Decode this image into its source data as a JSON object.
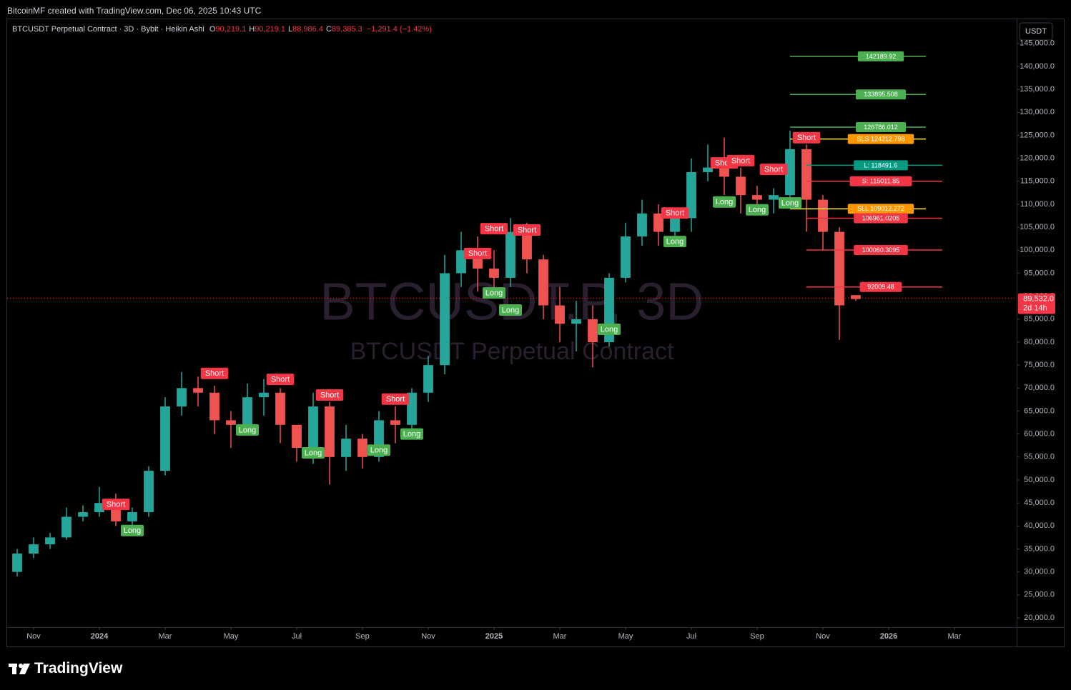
{
  "header": {
    "credit": "BitcoinMF created with TradingView.com, Dec 06, 2025 10:43 UTC"
  },
  "footer": {
    "brand": "TradingView"
  },
  "chart_data": {
    "type": "candlestick",
    "title": "BTCUSDT Perpetual Contract · 3D · Bybit · Heikin Ashi",
    "ohlc": [
      {
        "key": "O",
        "value": "90,219.1"
      },
      {
        "key": "H",
        "value": "90,219.1"
      },
      {
        "key": "L",
        "value": "88,986.4"
      },
      {
        "key": "C",
        "value": "89,385.3"
      }
    ],
    "change": "−1,291.4 (−1.42%)",
    "currency": "USDT",
    "watermark": [
      "BTCUSDT.P, 3D",
      "BTCUSDT Perpetual Contract"
    ],
    "up_color": "#26a69a",
    "down_color": "#ef5350",
    "xlim": [
      "2023-10",
      "2026-04"
    ],
    "xticks": [
      {
        "value": "2023-11",
        "label": "Nov"
      },
      {
        "value": "2024-01",
        "label": "2024"
      },
      {
        "value": "2024-03",
        "label": "Mar"
      },
      {
        "value": "2024-05",
        "label": "May"
      },
      {
        "value": "2024-07",
        "label": "Jul"
      },
      {
        "value": "2024-09",
        "label": "Sep"
      },
      {
        "value": "2024-11",
        "label": "Nov"
      },
      {
        "value": "2025-01",
        "label": "2025"
      },
      {
        "value": "2025-03",
        "label": "Mar"
      },
      {
        "value": "2025-05",
        "label": "May"
      },
      {
        "value": "2025-07",
        "label": "Jul"
      },
      {
        "value": "2025-09",
        "label": "Sep"
      },
      {
        "value": "2025-11",
        "label": "Nov"
      },
      {
        "value": "2026-01",
        "label": "2026"
      },
      {
        "value": "2026-03",
        "label": "Mar"
      }
    ],
    "ylim": [
      17980,
      150260
    ],
    "yticks": [
      {
        "value": 20000,
        "label": "20,000.0"
      },
      {
        "value": 25000,
        "label": "25,000.0"
      },
      {
        "value": 30000,
        "label": "30,000.0"
      },
      {
        "value": 35000,
        "label": "35,000.0"
      },
      {
        "value": 40000,
        "label": "40,000.0"
      },
      {
        "value": 45000,
        "label": "45,000.0"
      },
      {
        "value": 50000,
        "label": "50,000.0"
      },
      {
        "value": 55000,
        "label": "55,000.0"
      },
      {
        "value": 60000,
        "label": "60,000.0"
      },
      {
        "value": 65000,
        "label": "65,000.0"
      },
      {
        "value": 70000,
        "label": "70,000.0"
      },
      {
        "value": 75000,
        "label": "75,000.0"
      },
      {
        "value": 80000,
        "label": "80,000.0"
      },
      {
        "value": 85000,
        "label": "85,000.0"
      },
      {
        "value": 90000,
        "label": "90,000.0"
      },
      {
        "value": 95000,
        "label": "95,000.0"
      },
      {
        "value": 100000,
        "label": "100,000.0"
      },
      {
        "value": 105000,
        "label": "105,000.0"
      },
      {
        "value": 110000,
        "label": "110,000.0"
      },
      {
        "value": 115000,
        "label": "115,000.0"
      },
      {
        "value": 120000,
        "label": "120,000.0"
      },
      {
        "value": 125000,
        "label": "125,000.0"
      },
      {
        "value": 130000,
        "label": "130,000.0"
      },
      {
        "value": 135000,
        "label": "135,000.0"
      },
      {
        "value": 140000,
        "label": "140,000.0"
      },
      {
        "value": 145000,
        "label": "145,000.0"
      }
    ],
    "open": [
      30000,
      34000,
      36000,
      37500,
      42000,
      43000,
      45000,
      41000,
      43000,
      52000,
      66000,
      70000,
      69000,
      63000,
      62000,
      68000,
      69000,
      62000,
      57000,
      66000,
      55000,
      59000,
      55000,
      63000,
      62000,
      69000,
      75000,
      95000,
      100000,
      96000,
      94000,
      104000,
      98000,
      88000,
      84000,
      85000,
      80000,
      94000,
      103000,
      108000,
      104000,
      107000,
      117000,
      118000,
      116000,
      112000,
      111000,
      112000,
      122000,
      111000,
      104000,
      90219.1
    ],
    "high": [
      35000,
      37500,
      38500,
      44000,
      44500,
      48500,
      47000,
      44000,
      53000,
      68000,
      73500,
      72500,
      70500,
      65000,
      71000,
      72000,
      70000,
      61000,
      69000,
      67000,
      62000,
      60000,
      65000,
      66000,
      70000,
      77000,
      99000,
      104000,
      103000,
      100000,
      107000,
      106000,
      99000,
      92000,
      89000,
      88000,
      95000,
      106000,
      111000,
      110000,
      109000,
      120000,
      123000,
      124500,
      118000,
      114000,
      113500,
      126000,
      123000,
      112000,
      105000,
      90219.1
    ],
    "low": [
      29000,
      33000,
      35000,
      37000,
      41000,
      42000,
      40000,
      39000,
      42000,
      51000,
      64000,
      66000,
      60000,
      57000,
      61000,
      64000,
      58000,
      54000,
      53500,
      49000,
      52000,
      52500,
      54000,
      58000,
      60000,
      67000,
      73000,
      92000,
      91000,
      90000,
      92000,
      95000,
      85000,
      80000,
      78000,
      74500,
      79000,
      93000,
      101000,
      101000,
      102000,
      104000,
      115000,
      112000,
      108000,
      108000,
      108000,
      110000,
      104000,
      100000,
      80500,
      88986.4
    ],
    "close": [
      34000,
      36000,
      37500,
      42000,
      43000,
      45000,
      41000,
      43000,
      52000,
      66000,
      70000,
      69000,
      63000,
      62000,
      68000,
      69000,
      62000,
      57000,
      66000,
      55000,
      59000,
      55000,
      63000,
      62000,
      69000,
      75000,
      95000,
      100000,
      96000,
      94000,
      104000,
      98000,
      88000,
      84000,
      85000,
      80000,
      94000,
      103000,
      108000,
      104000,
      107000,
      117000,
      118000,
      116000,
      112000,
      111000,
      112000,
      122000,
      111000,
      104000,
      88000,
      89385.3
    ],
    "signal_colors": {
      "Short": "#f23645",
      "Long": "#4caf50"
    },
    "signals": [
      {
        "label": "Short",
        "candle": 6,
        "price": 44700
      },
      {
        "label": "Long",
        "candle": 7,
        "price": 39000
      },
      {
        "label": "Short",
        "candle": 12,
        "price": 73200
      },
      {
        "label": "Long",
        "candle": 14,
        "price": 60900
      },
      {
        "label": "Short",
        "candle": 16,
        "price": 71900
      },
      {
        "label": "Long",
        "candle": 18,
        "price": 55900
      },
      {
        "label": "Short",
        "candle": 19,
        "price": 68500
      },
      {
        "label": "Long",
        "candle": 22,
        "price": 56500
      },
      {
        "label": "Short",
        "candle": 23,
        "price": 67600
      },
      {
        "label": "Long",
        "candle": 24,
        "price": 60000
      },
      {
        "label": "Short",
        "candle": 28,
        "price": 99300
      },
      {
        "label": "Short",
        "candle": 29,
        "price": 104700
      },
      {
        "label": "Long",
        "candle": 29,
        "price": 90700
      },
      {
        "label": "Long",
        "candle": 30,
        "price": 87000
      },
      {
        "label": "Short",
        "candle": 31,
        "price": 104400
      },
      {
        "label": "Long",
        "candle": 36,
        "price": 82800
      },
      {
        "label": "Short",
        "candle": 40,
        "price": 108100
      },
      {
        "label": "Long",
        "candle": 40,
        "price": 101900
      },
      {
        "label": "Short",
        "candle": 43,
        "price": 119000
      },
      {
        "label": "Long",
        "candle": 43,
        "price": 110500
      },
      {
        "label": "Short",
        "candle": 44,
        "price": 119500
      },
      {
        "label": "Long",
        "candle": 45,
        "price": 108800
      },
      {
        "label": "Short",
        "candle": 46,
        "price": 117600
      },
      {
        "label": "Long",
        "candle": 47,
        "price": 110300
      },
      {
        "label": "Short",
        "candle": 48,
        "price": 124500
      }
    ],
    "levels": [
      {
        "value": 142189.92,
        "label": "142189.92",
        "color": "#4caf50",
        "line_color": "#4caf50",
        "from": 47
      },
      {
        "value": 133895.508,
        "label": "133895.508",
        "color": "#4caf50",
        "line_color": "#4caf50",
        "from": 47
      },
      {
        "value": 126786.012,
        "label": "126786.012",
        "color": "#4caf50",
        "line_color": "#4caf50",
        "from": 47
      },
      {
        "value": 124212.798,
        "label": "SLS 124212.798",
        "color": "#ff9800",
        "line_color": "#ffeb3b",
        "from": 47
      },
      {
        "value": 118491.6,
        "label": "L: 118491.6",
        "color": "#089981",
        "line_color": "#089981",
        "from": 48
      },
      {
        "value": 115011.85,
        "label": "S:  115011.85",
        "color": "#f23645",
        "line_color": "#f23645",
        "from": 48
      },
      {
        "value": 109012.272,
        "label": "SLL 109012.272",
        "color": "#ff9800",
        "line_color": "#ffeb3b",
        "from": 47
      },
      {
        "value": 106961.0205,
        "label": "106961.0205",
        "color": "#f23645",
        "line_color": "#f23645",
        "from": 48
      },
      {
        "value": 100060.3095,
        "label": "100060.3095",
        "color": "#f23645",
        "line_color": "#f23645",
        "from": 48
      },
      {
        "value": 92009.48,
        "label": "92009.48",
        "color": "#f23645",
        "line_color": "#f23645",
        "from": 48
      }
    ],
    "last_price": {
      "value": 89532.0,
      "label": "89,532.0",
      "countdown": "2d 14h",
      "color": "#f23645"
    }
  }
}
